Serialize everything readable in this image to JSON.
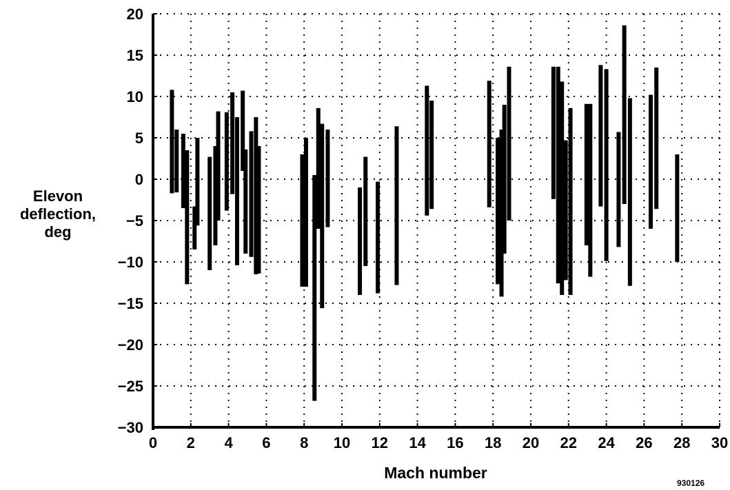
{
  "chart_data": {
    "type": "bar",
    "subtype": "floating-range",
    "xlabel": "Mach number",
    "ylabel_lines": [
      "Elevon",
      "deflection,",
      "deg"
    ],
    "xlim": [
      0,
      30
    ],
    "ylim": [
      -30,
      20
    ],
    "xticks": [
      0,
      2,
      4,
      6,
      8,
      10,
      12,
      14,
      16,
      18,
      20,
      22,
      24,
      26,
      28,
      30
    ],
    "yticks": [
      20,
      15,
      10,
      5,
      0,
      -5,
      -10,
      -15,
      -20,
      -25,
      -30
    ],
    "ytick_labels": [
      "20",
      "15",
      "10",
      "5",
      "0",
      "−5",
      "−10",
      "−15",
      "−20",
      "−25",
      "−30"
    ],
    "grid": true,
    "ranges": [
      {
        "mach": 1.0,
        "min": -1.7,
        "max": 10.8
      },
      {
        "mach": 1.25,
        "min": -1.6,
        "max": 6.0
      },
      {
        "mach": 1.6,
        "min": -3.5,
        "max": 5.5
      },
      {
        "mach": 1.8,
        "min": -12.7,
        "max": 3.5
      },
      {
        "mach": 2.2,
        "min": -8.5,
        "max": -3.3
      },
      {
        "mach": 2.35,
        "min": -5.6,
        "max": 5.0
      },
      {
        "mach": 3.0,
        "min": -11.0,
        "max": 2.7
      },
      {
        "mach": 3.3,
        "min": -8.0,
        "max": 4.0
      },
      {
        "mach": 3.45,
        "min": -5.0,
        "max": 8.2
      },
      {
        "mach": 3.9,
        "min": -3.8,
        "max": 8.1
      },
      {
        "mach": 4.2,
        "min": -1.8,
        "max": 10.5
      },
      {
        "mach": 4.45,
        "min": -10.4,
        "max": 7.5
      },
      {
        "mach": 4.75,
        "min": 1.0,
        "max": 10.7
      },
      {
        "mach": 4.9,
        "min": -9.0,
        "max": 3.6
      },
      {
        "mach": 5.2,
        "min": -9.4,
        "max": 5.8
      },
      {
        "mach": 5.45,
        "min": -11.5,
        "max": 7.5
      },
      {
        "mach": 5.6,
        "min": -11.4,
        "max": 4.0
      },
      {
        "mach": 7.9,
        "min": -13.0,
        "max": 3.0
      },
      {
        "mach": 8.1,
        "min": -13.0,
        "max": 5.0
      },
      {
        "mach": 8.55,
        "min": -26.8,
        "max": 0.5
      },
      {
        "mach": 8.75,
        "min": -6.0,
        "max": 8.6
      },
      {
        "mach": 8.95,
        "min": -15.6,
        "max": 6.7
      },
      {
        "mach": 9.25,
        "min": -5.8,
        "max": 6.0
      },
      {
        "mach": 10.95,
        "min": -14.0,
        "max": -1.0
      },
      {
        "mach": 11.25,
        "min": -10.5,
        "max": 2.7
      },
      {
        "mach": 11.9,
        "min": -13.8,
        "max": -0.3
      },
      {
        "mach": 12.9,
        "min": -12.8,
        "max": 6.4
      },
      {
        "mach": 14.5,
        "min": -4.4,
        "max": 11.3
      },
      {
        "mach": 14.75,
        "min": -3.6,
        "max": 9.5
      },
      {
        "mach": 17.8,
        "min": -3.4,
        "max": 11.9
      },
      {
        "mach": 18.25,
        "min": -12.7,
        "max": 5.0
      },
      {
        "mach": 18.45,
        "min": -14.2,
        "max": 6.0
      },
      {
        "mach": 18.6,
        "min": -9.0,
        "max": 9.0
      },
      {
        "mach": 18.85,
        "min": -5.0,
        "max": 13.6
      },
      {
        "mach": 21.2,
        "min": -2.4,
        "max": 13.6
      },
      {
        "mach": 21.45,
        "min": -12.6,
        "max": 13.6
      },
      {
        "mach": 21.65,
        "min": -14.0,
        "max": 11.8
      },
      {
        "mach": 21.85,
        "min": -12.2,
        "max": 4.7
      },
      {
        "mach": 22.1,
        "min": -14.0,
        "max": 8.6
      },
      {
        "mach": 22.95,
        "min": -8.0,
        "max": 9.1
      },
      {
        "mach": 23.15,
        "min": -11.8,
        "max": 9.1
      },
      {
        "mach": 23.7,
        "min": -3.3,
        "max": 13.8
      },
      {
        "mach": 24.0,
        "min": -9.9,
        "max": 13.3
      },
      {
        "mach": 24.65,
        "min": -8.2,
        "max": 5.7
      },
      {
        "mach": 24.95,
        "min": -3.0,
        "max": 18.6
      },
      {
        "mach": 25.25,
        "min": -12.9,
        "max": 9.8
      },
      {
        "mach": 26.35,
        "min": -6.0,
        "max": 10.2
      },
      {
        "mach": 26.65,
        "min": -3.6,
        "max": 13.5
      },
      {
        "mach": 27.75,
        "min": -10.0,
        "max": 3.0
      }
    ]
  },
  "figure_id": "930126"
}
